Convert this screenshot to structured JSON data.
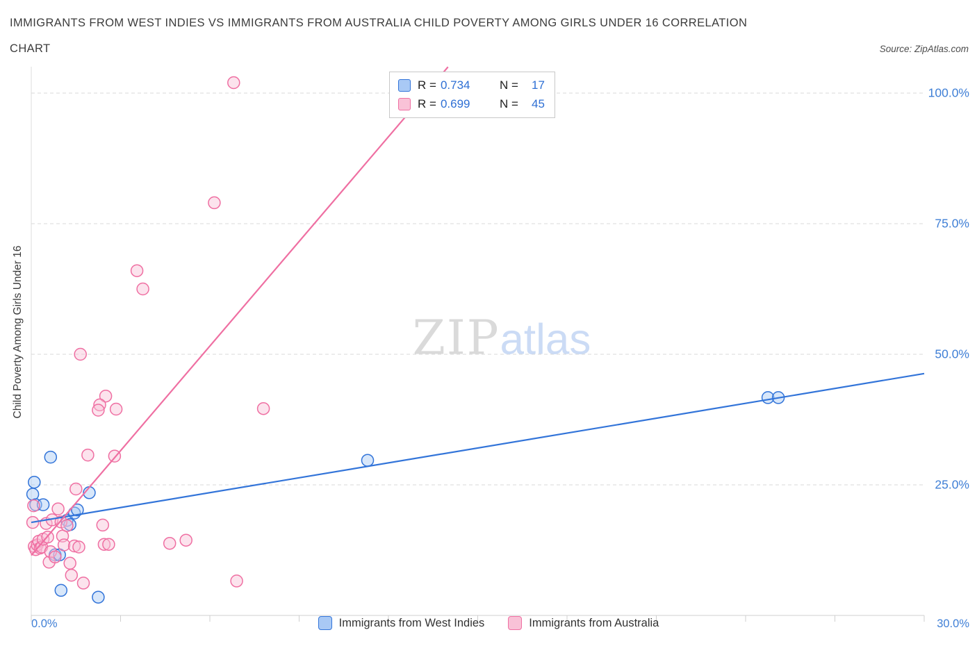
{
  "header": {
    "title_line1": "IMMIGRANTS FROM WEST INDIES VS IMMIGRANTS FROM AUSTRALIA CHILD POVERTY AMONG GIRLS UNDER 16 CORRELATION",
    "title_line2": "CHART",
    "source": "Source: ZipAtlas.com"
  },
  "legend": {
    "r_label": "R =",
    "n_label": "N ="
  },
  "watermark": {
    "part1": "ZIP",
    "part2": "atlas"
  },
  "chart_data": {
    "type": "scatter",
    "title": "Immigrants from West Indies vs Immigrants from Australia Child Poverty Among Girls Under 16 Correlation Chart",
    "ylabel": "Child Poverty Among Girls Under 16",
    "xlim": [
      0,
      30
    ],
    "ylim": [
      0,
      105
    ],
    "x_tick_labels": [
      "0.0%",
      "30.0%"
    ],
    "y_ticks": [
      25,
      50,
      75,
      100
    ],
    "y_tick_labels": [
      "25.0%",
      "50.0%",
      "75.0%",
      "100.0%"
    ],
    "grid": "horizontal-dashed",
    "legend_position": "top-center",
    "axis_label_color": "#3f7fd6",
    "series": [
      {
        "id": "west-indies",
        "name": "Immigrants from West Indies",
        "R": "0.734",
        "N": "17",
        "color": "#3274d9",
        "fill": "#a9c9f5",
        "points": [
          [
            0.1,
            25.5
          ],
          [
            0.05,
            23.2
          ],
          [
            0.15,
            21.2
          ],
          [
            0.4,
            21.2
          ],
          [
            0.65,
            30.3
          ],
          [
            0.8,
            11.6
          ],
          [
            0.95,
            11.6
          ],
          [
            1.0,
            4.8
          ],
          [
            1.2,
            18.2
          ],
          [
            1.3,
            17.4
          ],
          [
            1.45,
            19.6
          ],
          [
            1.55,
            20.2
          ],
          [
            1.95,
            23.5
          ],
          [
            2.25,
            3.5
          ],
          [
            11.3,
            29.7
          ],
          [
            24.75,
            41.7
          ],
          [
            25.1,
            41.7
          ]
        ],
        "trend": {
          "x1": 0,
          "y1": 17.8,
          "x2": 30,
          "y2": 46.3
        }
      },
      {
        "id": "australia",
        "name": "Immigrants from Australia",
        "R": "0.699",
        "N": "45",
        "color": "#ef6fa2",
        "fill": "#f9c2d7",
        "points": [
          [
            6.8,
            102
          ],
          [
            13.6,
            102.5
          ],
          [
            6.15,
            79
          ],
          [
            3.55,
            66
          ],
          [
            3.75,
            62.5
          ],
          [
            1.65,
            50
          ],
          [
            2.5,
            42
          ],
          [
            2.3,
            40.3
          ],
          [
            2.25,
            39.3
          ],
          [
            2.85,
            39.5
          ],
          [
            7.8,
            39.6
          ],
          [
            1.9,
            30.7
          ],
          [
            2.8,
            30.5
          ],
          [
            2.4,
            17.3
          ],
          [
            2.45,
            13.6
          ],
          [
            2.6,
            13.6
          ],
          [
            4.65,
            13.8
          ],
          [
            5.2,
            14.4
          ],
          [
            6.9,
            6.6
          ],
          [
            0.05,
            17.8
          ],
          [
            0.08,
            21.0
          ],
          [
            0.1,
            13.2
          ],
          [
            0.15,
            12.6
          ],
          [
            0.2,
            13.5
          ],
          [
            0.25,
            14.2
          ],
          [
            0.3,
            12.9
          ],
          [
            0.35,
            13.1
          ],
          [
            0.4,
            14.6
          ],
          [
            0.5,
            17.6
          ],
          [
            0.55,
            15.0
          ],
          [
            0.6,
            10.2
          ],
          [
            0.65,
            12.2
          ],
          [
            0.7,
            18.3
          ],
          [
            0.8,
            11.2
          ],
          [
            0.9,
            20.4
          ],
          [
            1.0,
            17.9
          ],
          [
            1.05,
            15.2
          ],
          [
            1.1,
            13.5
          ],
          [
            1.2,
            17.2
          ],
          [
            1.3,
            10.0
          ],
          [
            1.35,
            7.7
          ],
          [
            1.45,
            13.3
          ],
          [
            1.5,
            24.2
          ],
          [
            1.6,
            13.1
          ],
          [
            1.75,
            6.2
          ]
        ],
        "trend": {
          "x1": 0,
          "y1": 11.5,
          "x2": 14.0,
          "y2": 105
        }
      }
    ]
  }
}
